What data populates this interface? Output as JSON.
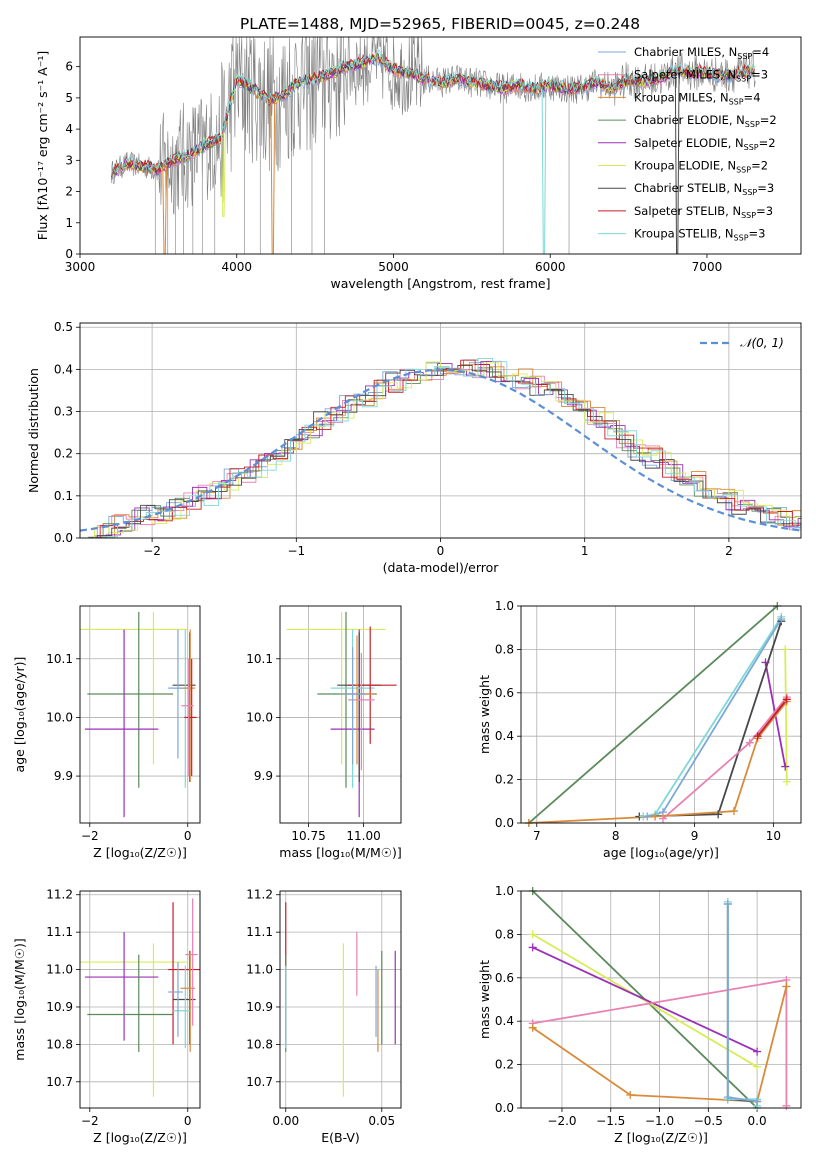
{
  "figure_title": "PLATE=1488, MJD=52965, FIBERID=0045, z=0.248",
  "colors": {
    "Chabrier MILES": "#7fa8d8",
    "Salpeter MILES": "#e882b4",
    "Kroupa MILES": "#d98a3a",
    "Chabrier ELODIE": "#5a8a5a",
    "Salpeter ELODIE": "#9b30b8",
    "Kroupa ELODIE": "#d8ec5a",
    "Chabrier STELIB": "#484848",
    "Salpeter STELIB": "#c81e28",
    "Kroupa STELIB": "#7ed8d8",
    "data": "#808080",
    "normal": "#5b8fd8",
    "grid": "#b0b0b0"
  },
  "chart_data": [
    {
      "id": "spectrum",
      "type": "line",
      "title": "",
      "xlabel": "wavelength [Angstrom, rest frame]",
      "ylabel": "Flux [fλ10⁻¹⁷ erg cm⁻² s⁻¹ A⁻¹]",
      "xlim": [
        3000,
        7600
      ],
      "ylim": [
        0,
        6.95
      ],
      "xticks": [
        3000,
        4000,
        5000,
        6000,
        7000
      ],
      "yticks": [
        0,
        1,
        2,
        3,
        4,
        5,
        6
      ],
      "grid": false,
      "legend_position": "right",
      "legend": [
        {
          "name": "Chabrier MILES",
          "nssp": "4"
        },
        {
          "name": "Salpeter MILES",
          "nssp": "3"
        },
        {
          "name": "Kroupa MILES",
          "nssp": "4"
        },
        {
          "name": "Chabrier ELODIE",
          "nssp": "2"
        },
        {
          "name": "Salpeter ELODIE",
          "nssp": "2"
        },
        {
          "name": "Kroupa ELODIE",
          "nssp": "2"
        },
        {
          "name": "Chabrier STELIB",
          "nssp": "3"
        },
        {
          "name": "Salpeter STELIB",
          "nssp": "3"
        },
        {
          "name": "Kroupa STELIB",
          "nssp": "3"
        }
      ],
      "continuum": {
        "x": [
          3200,
          3300,
          3400,
          3500,
          3600,
          3700,
          3800,
          3900,
          4000,
          4100,
          4200,
          4300,
          4400,
          4500,
          4600,
          4700,
          4800,
          4900,
          5000,
          5100,
          5200,
          5300,
          5400,
          5500,
          5600,
          5700,
          5800,
          5900,
          6000,
          6100,
          6200,
          6300,
          6400,
          6500,
          6600,
          6700,
          6800,
          6900,
          7000,
          7100,
          7200,
          7300
        ],
        "y": [
          2.6,
          2.9,
          2.8,
          2.7,
          3.0,
          3.2,
          3.5,
          3.7,
          5.6,
          5.3,
          4.9,
          5.1,
          5.5,
          5.6,
          5.8,
          6.0,
          6.1,
          6.3,
          5.9,
          5.8,
          5.6,
          5.5,
          5.6,
          5.5,
          5.4,
          5.3,
          5.4,
          5.3,
          5.4,
          5.3,
          5.3,
          5.5,
          5.3,
          5.6,
          5.5,
          5.6,
          5.9,
          5.8,
          5.8,
          5.7,
          5.8,
          5.9
        ]
      },
      "dips": [
        {
          "x": 3540,
          "y": 0.0
        },
        {
          "x": 3915,
          "y": 1.2
        },
        {
          "x": 4230,
          "y": 0.0
        },
        {
          "x": 5960,
          "y": 0.0
        },
        {
          "x": 6810,
          "y": 0.0
        }
      ]
    },
    {
      "id": "residuals",
      "type": "bar",
      "title": "",
      "xlabel": "(data-model)/error",
      "ylabel": "Normed distribution",
      "xlim": [
        -2.5,
        2.5
      ],
      "ylim": [
        0,
        0.51
      ],
      "xticks": [
        -2,
        -1,
        0,
        1,
        2
      ],
      "yticks": [
        0.0,
        0.1,
        0.2,
        0.3,
        0.4,
        0.5
      ],
      "grid": true,
      "legend_position": "upper right",
      "normal_label": "𝒩(0, 1)",
      "bin_width": 0.1,
      "bin_start": -2.5
    },
    {
      "id": "age-vs-metallicity",
      "type": "scatter",
      "xlabel": "Z [log₁₀(Z/Z☉)]",
      "ylabel": "age  [log₁₀(age/yr)]",
      "xlim": [
        -2.2,
        0.25
      ],
      "ylim": [
        9.82,
        10.19
      ],
      "xticks": [
        -2,
        0
      ],
      "yticks": [
        9.9,
        10.0,
        10.1
      ],
      "grid": true,
      "errorbars": [
        {
          "model": "Kroupa ELODIE",
          "x": -0.7,
          "xerr": [
            1.5,
            0.7
          ],
          "y": 10.15,
          "yerr": [
            0.23,
            0.03
          ]
        },
        {
          "model": "Chabrier ELODIE",
          "x": -1.0,
          "xerr": [
            1.05,
            0.7
          ],
          "y": 10.04,
          "yerr": [
            0.16,
            0.14
          ]
        },
        {
          "model": "Salpeter ELODIE",
          "x": -1.3,
          "xerr": [
            0.8,
            0.7
          ],
          "y": 9.98,
          "yerr": [
            0.15,
            0.17
          ]
        },
        {
          "model": "Chabrier STELIB",
          "x": 0.04,
          "xerr": [
            0.35,
            0.12
          ],
          "y": 10.055,
          "yerr": [
            0.165,
            0.09
          ]
        },
        {
          "model": "Kroupa STELIB",
          "x": -0.05,
          "xerr": [
            0.25,
            0.12
          ],
          "y": 10.05,
          "yerr": [
            0.17,
            0.1
          ]
        },
        {
          "model": "Kroupa MILES",
          "x": 0.05,
          "xerr": [
            0.2,
            0.1
          ],
          "y": 10.05,
          "yerr": [
            0.16,
            0.1
          ]
        },
        {
          "model": "Salpeter STELIB",
          "x": 0.08,
          "xerr": [
            0.15,
            0.1
          ],
          "y": 10.0,
          "yerr": [
            0.1,
            0.1
          ]
        },
        {
          "model": "Chabrier MILES",
          "x": -0.2,
          "xerr": [
            0.2,
            0.1
          ],
          "y": 10.05,
          "yerr": [
            0.12,
            0.1
          ]
        },
        {
          "model": "Salpeter MILES",
          "x": 0.02,
          "xerr": [
            0.15,
            0.1
          ],
          "y": 10.02,
          "yerr": [
            0.12,
            0.08
          ]
        }
      ]
    },
    {
      "id": "age-vs-mass",
      "type": "scatter",
      "xlabel": "mass [log₁₀(M/M☉)]",
      "ylabel": "",
      "xlim": [
        10.62,
        11.17
      ],
      "ylim": [
        9.82,
        10.19
      ],
      "xticks": [
        10.75,
        11.0
      ],
      "xticklabels": [
        "10.75",
        "11.00"
      ],
      "yticks": [
        9.9,
        10.0,
        10.1
      ],
      "grid": true,
      "errorbars": [
        {
          "model": "Kroupa ELODIE",
          "x": 10.9,
          "xerr": [
            0.25,
            0.2
          ],
          "y": 10.15,
          "yerr": [
            0.23,
            0.03
          ]
        },
        {
          "model": "Chabrier ELODIE",
          "x": 10.92,
          "xerr": [
            0.13,
            0.14
          ],
          "y": 10.04,
          "yerr": [
            0.16,
            0.14
          ]
        },
        {
          "model": "Salpeter ELODIE",
          "x": 10.98,
          "xerr": [
            0.13,
            0.07
          ],
          "y": 9.98,
          "yerr": [
            0.15,
            0.17
          ]
        },
        {
          "model": "Chabrier STELIB",
          "x": 10.98,
          "xerr": [
            0.1,
            0.1
          ],
          "y": 10.055,
          "yerr": [
            0.165,
            0.09
          ]
        },
        {
          "model": "Kroupa STELIB",
          "x": 10.95,
          "xerr": [
            0.1,
            0.1
          ],
          "y": 10.05,
          "yerr": [
            0.17,
            0.1
          ]
        },
        {
          "model": "Salpeter STELIB",
          "x": 11.03,
          "xerr": [
            0.1,
            0.12
          ],
          "y": 10.055,
          "yerr": [
            0.1,
            0.1
          ]
        },
        {
          "model": "Kroupa MILES",
          "x": 10.97,
          "xerr": [
            0.08,
            0.08
          ],
          "y": 10.04,
          "yerr": [
            0.12,
            0.1
          ]
        },
        {
          "model": "Salpeter MILES",
          "x": 10.99,
          "xerr": [
            0.06,
            0.06
          ],
          "y": 10.03,
          "yerr": [
            0.12,
            0.08
          ]
        },
        {
          "model": "Chabrier MILES",
          "x": 10.95,
          "xerr": [
            0.06,
            0.06
          ],
          "y": 10.04,
          "yerr": [
            0.12,
            0.08
          ]
        }
      ]
    },
    {
      "id": "mass-weight-vs-age",
      "type": "line",
      "xlabel": "age  [log₁₀(age/yr)]",
      "ylabel": "mass weight",
      "xlim": [
        6.8,
        10.35
      ],
      "ylim": [
        0,
        1.0
      ],
      "xticks": [
        7,
        8,
        9,
        10
      ],
      "yticks": [
        0.0,
        0.2,
        0.4,
        0.6,
        0.8,
        1.0
      ],
      "grid": true,
      "series": [
        {
          "model": "Chabrier ELODIE",
          "x": [
            6.9,
            10.05
          ],
          "y": [
            0.0,
            1.0
          ]
        },
        {
          "model": "Kroupa ELODIE",
          "x": [
            10.15,
            10.17
          ],
          "y": [
            0.8,
            0.19
          ]
        },
        {
          "model": "Salpeter ELODIE",
          "x": [
            9.9,
            10.15
          ],
          "y": [
            0.74,
            0.26
          ]
        },
        {
          "model": "Chabrier STELIB",
          "x": [
            8.3,
            9.3,
            10.1
          ],
          "y": [
            0.03,
            0.04,
            0.93
          ]
        },
        {
          "model": "Kroupa STELIB",
          "x": [
            8.35,
            8.5,
            10.1
          ],
          "y": [
            0.03,
            0.04,
            0.95
          ]
        },
        {
          "model": "Chabrier MILES",
          "x": [
            8.4,
            8.6,
            10.1
          ],
          "y": [
            0.03,
            0.05,
            0.94
          ]
        },
        {
          "model": "Salpeter MILES",
          "x": [
            8.6,
            9.7,
            10.17
          ],
          "y": [
            0.02,
            0.37,
            0.58
          ]
        },
        {
          "model": "Kroupa MILES",
          "x": [
            6.9,
            8.5,
            9.5,
            9.8,
            10.17
          ],
          "y": [
            0.0,
            0.03,
            0.055,
            0.39,
            0.56
          ]
        },
        {
          "model": "Salpeter STELIB",
          "x": [
            9.8,
            10.17
          ],
          "y": [
            0.4,
            0.57
          ]
        }
      ]
    },
    {
      "id": "mass-vs-metallicity",
      "type": "scatter",
      "xlabel": "Z [log₁₀(Z/Z☉)]",
      "ylabel": "mass [log₁₀(M/M☉)]",
      "xlim": [
        -2.2,
        0.25
      ],
      "ylim": [
        10.63,
        11.21
      ],
      "xticks": [
        -2,
        0
      ],
      "yticks": [
        10.7,
        10.8,
        10.9,
        11.0,
        11.1,
        11.2
      ],
      "grid": true,
      "errorbars": [
        {
          "model": "Kroupa ELODIE",
          "x": -0.7,
          "xerr": [
            1.5,
            0.7
          ],
          "y": 11.02,
          "yerr": [
            0.36,
            0.05
          ]
        },
        {
          "model": "Salpeter ELODIE",
          "x": -1.3,
          "xerr": [
            0.8,
            0.7
          ],
          "y": 10.98,
          "yerr": [
            0.17,
            0.12
          ]
        },
        {
          "model": "Chabrier ELODIE",
          "x": -1.0,
          "xerr": [
            1.05,
            0.7
          ],
          "y": 10.88,
          "yerr": [
            0.1,
            0.16
          ]
        },
        {
          "model": "Salpeter STELIB",
          "x": -0.3,
          "xerr": [
            0.1,
            0.6
          ],
          "y": 11.0,
          "yerr": [
            0.2,
            0.18
          ]
        },
        {
          "model": "Chabrier STELIB",
          "x": 0.04,
          "xerr": [
            0.35,
            0.12
          ],
          "y": 10.92,
          "yerr": [
            0.12,
            0.13
          ]
        },
        {
          "model": "Kroupa STELIB",
          "x": -0.05,
          "xerr": [
            0.25,
            0.12
          ],
          "y": 10.89,
          "yerr": [
            0.1,
            0.12
          ]
        },
        {
          "model": "Kroupa MILES",
          "x": 0.05,
          "xerr": [
            0.2,
            0.1
          ],
          "y": 10.95,
          "yerr": [
            0.17,
            0.1
          ]
        },
        {
          "model": "Salpeter MILES",
          "x": 0.1,
          "xerr": [
            0.15,
            0.1
          ],
          "y": 11.04,
          "yerr": [
            0.19,
            0.15
          ]
        },
        {
          "model": "Chabrier MILES",
          "x": -0.2,
          "xerr": [
            0.2,
            0.1
          ],
          "y": 10.94,
          "yerr": [
            0.12,
            0.08
          ]
        }
      ]
    },
    {
      "id": "mass-vs-extinction",
      "type": "scatter",
      "xlabel": "E(B-V)",
      "ylabel": "",
      "xlim": [
        -0.003,
        0.06
      ],
      "ylim": [
        10.63,
        11.21
      ],
      "xticks": [
        0.0,
        0.05
      ],
      "xticklabels": [
        "0.00",
        "0.05"
      ],
      "yticks": [
        10.7,
        10.8,
        10.9,
        11.0,
        11.1,
        11.2
      ],
      "grid": true,
      "errorbars": [
        {
          "model": "Salpeter STELIB",
          "x": 0.0,
          "y": 11.0,
          "yerr": [
            0.2,
            0.18
          ]
        },
        {
          "model": "Chabrier ELODIE",
          "x": 0.0,
          "y": 10.88,
          "yerr": [
            0.1,
            0.16
          ]
        },
        {
          "model": "Kroupa STELIB",
          "x": 0.0,
          "y": 10.89,
          "yerr": [
            0.1,
            0.12
          ]
        },
        {
          "model": "Kroupa ELODIE",
          "x": 0.03,
          "y": 10.95,
          "yerr": [
            0.29,
            0.12
          ]
        },
        {
          "model": "Salpeter MILES",
          "x": 0.037,
          "y": 11.02,
          "yerr": [
            0.09,
            0.08
          ]
        },
        {
          "model": "Chabrier MILES",
          "x": 0.047,
          "y": 10.94,
          "yerr": [
            0.12,
            0.07
          ]
        },
        {
          "model": "Kroupa MILES",
          "x": 0.048,
          "y": 10.9,
          "yerr": [
            0.12,
            0.1
          ]
        },
        {
          "model": "Chabrier ELODIE",
          "x": 0.05,
          "y": 10.93,
          "yerr": [
            0.13,
            0.12
          ]
        },
        {
          "model": "Salpeter ELODIE",
          "x": 0.057,
          "y": 10.93,
          "yerr": [
            0.13,
            0.12
          ]
        }
      ]
    },
    {
      "id": "mass-weight-vs-metallicity",
      "type": "line",
      "xlabel": "Z [log₁₀(Z/Z☉)]",
      "ylabel": "mass weight",
      "xlim": [
        -2.42,
        0.45
      ],
      "ylim": [
        0,
        1.0
      ],
      "xticks": [
        -2.0,
        -1.5,
        -1.0,
        -0.5,
        0.0
      ],
      "xticklabels": [
        "−2.0",
        "−1.5",
        "−1.0",
        "−0.5",
        "0.0"
      ],
      "yticks": [
        0.0,
        0.2,
        0.4,
        0.6,
        0.8,
        1.0
      ],
      "grid": true,
      "series": [
        {
          "model": "Chabrier ELODIE",
          "x": [
            -2.3,
            0.0
          ],
          "y": [
            1.0,
            0.0
          ]
        },
        {
          "model": "Kroupa ELODIE",
          "x": [
            -2.3,
            0.0
          ],
          "y": [
            0.8,
            0.19
          ]
        },
        {
          "model": "Salpeter ELODIE",
          "x": [
            -2.3,
            0.0
          ],
          "y": [
            0.74,
            0.26
          ]
        },
        {
          "model": "Salpeter MILES",
          "x": [
            -2.3,
            0.3,
            0.3
          ],
          "y": [
            0.39,
            0.59,
            0.01
          ]
        },
        {
          "model": "Kroupa MILES",
          "x": [
            -2.3,
            -1.3,
            0.0,
            0.3,
            0.3
          ],
          "y": [
            0.37,
            0.06,
            0.03,
            0.56,
            0.56
          ]
        },
        {
          "model": "Chabrier STELIB",
          "x": [
            -0.3,
            -0.3,
            0.0
          ],
          "y": [
            0.94,
            0.04,
            0.03
          ]
        },
        {
          "model": "Kroupa STELIB",
          "x": [
            -0.3,
            -0.3,
            0.0,
            0.0
          ],
          "y": [
            0.95,
            0.04,
            0.04,
            0.01
          ]
        },
        {
          "model": "Chabrier MILES",
          "x": [
            -0.3,
            -0.3,
            0.0
          ],
          "y": [
            0.94,
            0.05,
            0.03
          ]
        }
      ]
    }
  ]
}
